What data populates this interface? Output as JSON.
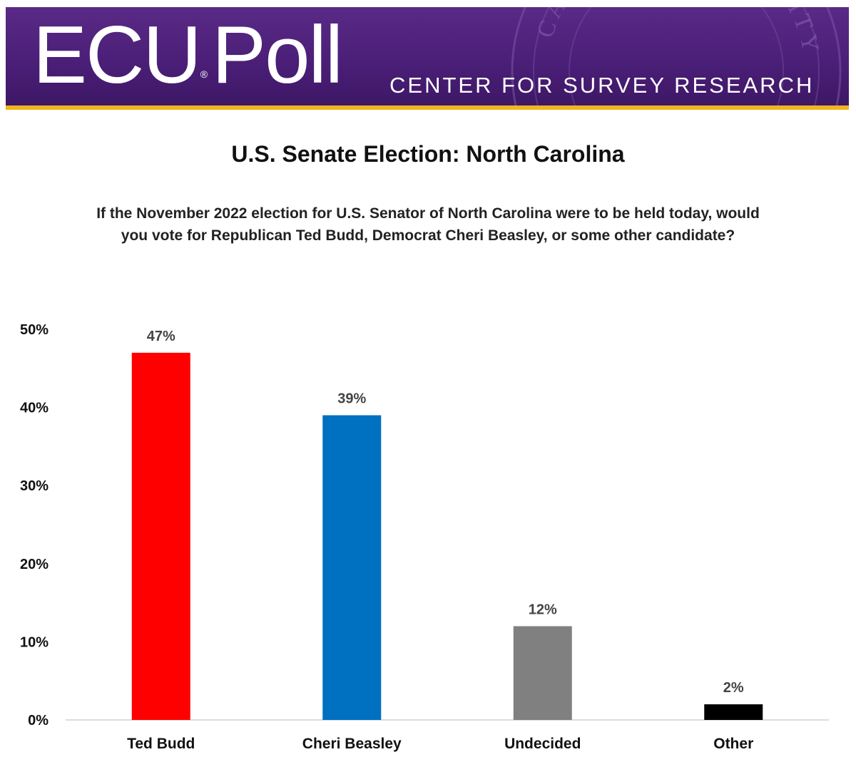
{
  "banner": {
    "logo": "ECU",
    "logo_mark": "®",
    "logo_suffix": "Poll",
    "tagline": "CENTER FOR SURVEY RESEARCH",
    "seal_text": "CAROLINA UNIVERSITY",
    "background_color": "#4b1f78",
    "stripe_color": "#f2b61c"
  },
  "chart_data": {
    "type": "bar",
    "title": "U.S. Senate Election: North Carolina",
    "subtitle": "If the November 2022 election for U.S. Senator of North Carolina were to be held today, would you vote for Republican Ted Budd, Democrat Cheri Beasley, or some other candidate?",
    "categories": [
      "Ted Budd",
      "Cheri Beasley",
      "Undecided",
      "Other"
    ],
    "values": [
      47,
      39,
      12,
      2
    ],
    "data_labels": [
      "47%",
      "39%",
      "12%",
      "2%"
    ],
    "colors": [
      "#ff0000",
      "#0070c0",
      "#808080",
      "#000000"
    ],
    "ylim": [
      0,
      50
    ],
    "yticks": [
      0,
      10,
      20,
      30,
      40,
      50
    ],
    "ytick_labels": [
      "0%",
      "10%",
      "20%",
      "30%",
      "40%",
      "50%"
    ],
    "xlabel": "",
    "ylabel": "",
    "grid": false,
    "legend": "none"
  }
}
